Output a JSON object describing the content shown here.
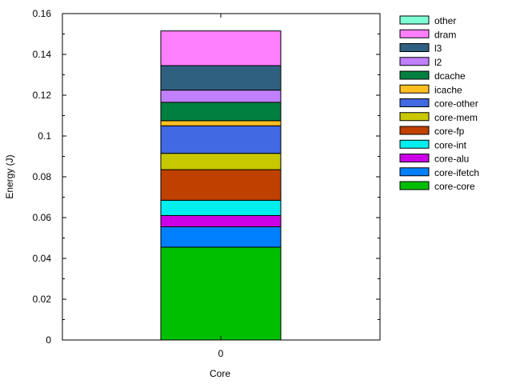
{
  "chart_data": {
    "type": "bar",
    "stacked": true,
    "title": "",
    "xlabel": "Core",
    "ylabel": "Energy (J)",
    "categories": [
      "0"
    ],
    "ylim": [
      0,
      0.16
    ],
    "yticks": [
      "0",
      "0.02",
      "0.04",
      "0.06",
      "0.08",
      "0.1",
      "0.12",
      "0.14",
      "0.16"
    ],
    "legend_position": "right",
    "series": [
      {
        "name": "core-core",
        "color": "#00bf00",
        "values": [
          0.0455
        ]
      },
      {
        "name": "core-ifetch",
        "color": "#0080ff",
        "values": [
          0.01
        ]
      },
      {
        "name": "core-alu",
        "color": "#cc00e6",
        "values": [
          0.0055
        ]
      },
      {
        "name": "core-int",
        "color": "#00eeee",
        "values": [
          0.0075
        ]
      },
      {
        "name": "core-fp",
        "color": "#c04000",
        "values": [
          0.015
        ]
      },
      {
        "name": "core-mem",
        "color": "#c8c800",
        "values": [
          0.008
        ]
      },
      {
        "name": "core-other",
        "color": "#4169e1",
        "values": [
          0.0135
        ]
      },
      {
        "name": "icache",
        "color": "#ffc020",
        "values": [
          0.0025
        ]
      },
      {
        "name": "dcache",
        "color": "#008040",
        "values": [
          0.009
        ]
      },
      {
        "name": "l2",
        "color": "#c080ff",
        "values": [
          0.006
        ]
      },
      {
        "name": "l3",
        "color": "#306080",
        "values": [
          0.012
        ]
      },
      {
        "name": "dram",
        "color": "#ff80ff",
        "values": [
          0.017
        ]
      },
      {
        "name": "other",
        "color": "#7fffd4",
        "values": [
          0.0
        ]
      }
    ]
  }
}
